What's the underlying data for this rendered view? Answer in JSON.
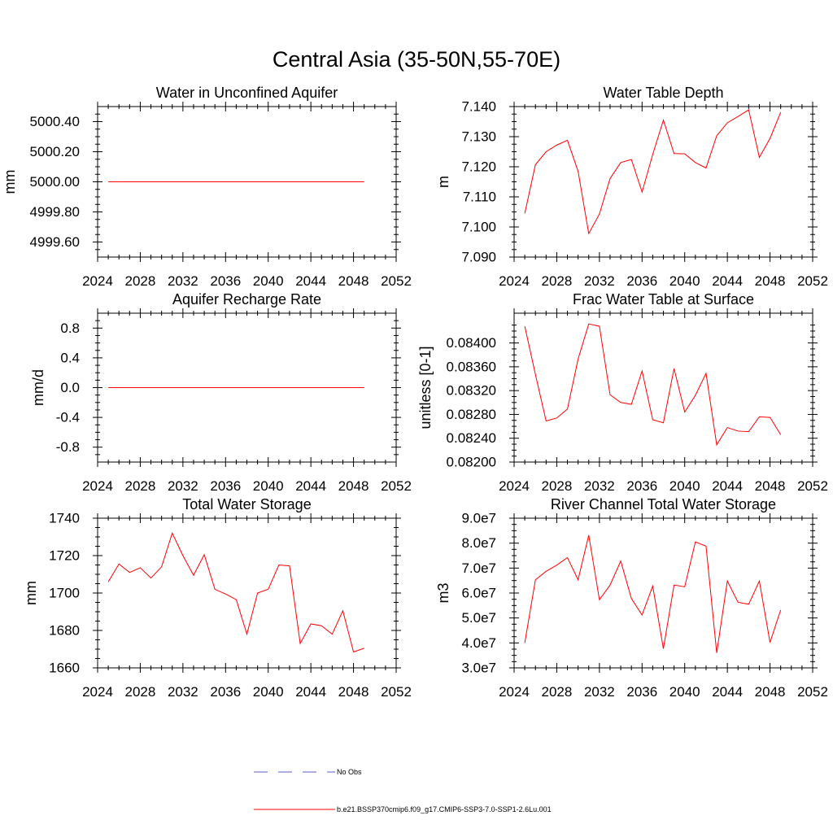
{
  "page_title": "Central Asia (35-50N,55-70E)",
  "legend": {
    "items": [
      {
        "label": "No Obs",
        "color": "#5b5bd6",
        "style": "dashed"
      },
      {
        "label": "b.e21.BSSP370cmip6.f09_g17.CMIP6-SSP3-7.0-SSP1-2.6Lu.001",
        "color": "#ff0000",
        "style": "solid"
      }
    ]
  },
  "chart_data": [
    {
      "type": "line",
      "title": "Water in Unconfined Aquifer",
      "xlabel": "",
      "ylabel": "mm",
      "xlim": [
        2024,
        2052
      ],
      "ylim": [
        4999.5,
        5000.5
      ],
      "xticks": [
        2024,
        2028,
        2032,
        2036,
        2040,
        2044,
        2048,
        2052
      ],
      "xtick_labels": [
        "2024",
        "2028",
        "2032",
        "2036",
        "2040",
        "2044",
        "2048",
        "2052"
      ],
      "yticks": [
        4999.6,
        4999.8,
        5000.0,
        5000.2,
        5000.4
      ],
      "ytick_labels": [
        "4999.60",
        "4999.80",
        "5000.00",
        "5000.20",
        "5000.40"
      ],
      "x": [
        2025,
        2026,
        2027,
        2028,
        2029,
        2030,
        2031,
        2032,
        2033,
        2034,
        2035,
        2036,
        2037,
        2038,
        2039,
        2040,
        2041,
        2042,
        2043,
        2044,
        2045,
        2046,
        2047,
        2048,
        2049
      ],
      "series": [
        {
          "values": [
            5000,
            5000,
            5000,
            5000,
            5000,
            5000,
            5000,
            5000,
            5000,
            5000,
            5000,
            5000,
            5000,
            5000,
            5000,
            5000,
            5000,
            5000,
            5000,
            5000,
            5000,
            5000,
            5000,
            5000,
            5000
          ],
          "color": "#ff0000"
        }
      ]
    },
    {
      "type": "line",
      "title": "Water Table Depth",
      "xlabel": "",
      "ylabel": "m",
      "xlim": [
        2024,
        2052
      ],
      "ylim": [
        7.09,
        7.14
      ],
      "xticks": [
        2024,
        2028,
        2032,
        2036,
        2040,
        2044,
        2048,
        2052
      ],
      "xtick_labels": [
        "2024",
        "2028",
        "2032",
        "2036",
        "2040",
        "2044",
        "2048",
        "2052"
      ],
      "yticks": [
        7.09,
        7.1,
        7.11,
        7.12,
        7.13,
        7.14
      ],
      "ytick_labels": [
        "7.090",
        "7.100",
        "7.110",
        "7.120",
        "7.130",
        "7.140"
      ],
      "x": [
        2025,
        2026,
        2027,
        2028,
        2029,
        2030,
        2031,
        2032,
        2033,
        2034,
        2035,
        2036,
        2037,
        2038,
        2039,
        2040,
        2041,
        2042,
        2043,
        2044,
        2045,
        2046,
        2047,
        2048,
        2049
      ],
      "series": [
        {
          "values": [
            7.1045,
            7.1207,
            7.125,
            7.1272,
            7.1288,
            7.1185,
            7.0978,
            7.1043,
            7.1161,
            7.1214,
            7.1224,
            7.1116,
            7.1241,
            7.1355,
            7.1244,
            7.1243,
            7.1214,
            7.1196,
            7.1303,
            7.1346,
            7.1367,
            7.1389,
            7.1231,
            7.1294,
            7.1381
          ],
          "color": "#ff0000"
        }
      ]
    },
    {
      "type": "line",
      "title": "Aquifer Recharge Rate",
      "xlabel": "",
      "ylabel": "mm/d",
      "xlim": [
        2024,
        2052
      ],
      "ylim": [
        -1.0,
        1.0
      ],
      "xticks": [
        2024,
        2028,
        2032,
        2036,
        2040,
        2044,
        2048,
        2052
      ],
      "xtick_labels": [
        "2024",
        "2028",
        "2032",
        "2036",
        "2040",
        "2044",
        "2048",
        "2052"
      ],
      "yticks": [
        -0.8,
        -0.4,
        0.0,
        0.4,
        0.8
      ],
      "ytick_labels": [
        "-0.8",
        "-0.4",
        "0.0",
        "0.4",
        "0.8"
      ],
      "x": [
        2025,
        2026,
        2027,
        2028,
        2029,
        2030,
        2031,
        2032,
        2033,
        2034,
        2035,
        2036,
        2037,
        2038,
        2039,
        2040,
        2041,
        2042,
        2043,
        2044,
        2045,
        2046,
        2047,
        2048,
        2049
      ],
      "series": [
        {
          "values": [
            0,
            0,
            0,
            0,
            0,
            0,
            0,
            0,
            0,
            0,
            0,
            0,
            0,
            0,
            0,
            0,
            0,
            0,
            0,
            0,
            0,
            0,
            0,
            0,
            0
          ],
          "color": "#ff0000"
        }
      ]
    },
    {
      "type": "line",
      "title": "Frac Water Table at Surface",
      "xlabel": "",
      "ylabel": "unitless [0-1]",
      "xlim": [
        2024,
        2052
      ],
      "ylim": [
        0.082,
        0.0845
      ],
      "xticks": [
        2024,
        2028,
        2032,
        2036,
        2040,
        2044,
        2048,
        2052
      ],
      "xtick_labels": [
        "2024",
        "2028",
        "2032",
        "2036",
        "2040",
        "2044",
        "2048",
        "2052"
      ],
      "yticks": [
        0.082,
        0.0824,
        0.0828,
        0.0832,
        0.0836,
        0.084
      ],
      "ytick_labels": [
        "0.08200",
        "0.08240",
        "0.08280",
        "0.08320",
        "0.08360",
        "0.08400"
      ],
      "x": [
        2025,
        2026,
        2027,
        2028,
        2029,
        2030,
        2031,
        2032,
        2033,
        2034,
        2035,
        2036,
        2037,
        2038,
        2039,
        2040,
        2041,
        2042,
        2043,
        2044,
        2045,
        2046,
        2047,
        2048,
        2049
      ],
      "series": [
        {
          "values": [
            0.08428,
            0.08347,
            0.08269,
            0.08274,
            0.08289,
            0.08373,
            0.08432,
            0.08428,
            0.08313,
            0.083,
            0.08297,
            0.08353,
            0.08271,
            0.08266,
            0.08357,
            0.08284,
            0.08312,
            0.08349,
            0.08229,
            0.08258,
            0.08252,
            0.08251,
            0.08276,
            0.08275,
            0.08246
          ],
          "color": "#ff0000"
        }
      ]
    },
    {
      "type": "line",
      "title": "Total Water Storage",
      "xlabel": "",
      "ylabel": "mm",
      "xlim": [
        2024,
        2052
      ],
      "ylim": [
        1660,
        1740
      ],
      "xticks": [
        2024,
        2028,
        2032,
        2036,
        2040,
        2044,
        2048,
        2052
      ],
      "xtick_labels": [
        "2024",
        "2028",
        "2032",
        "2036",
        "2040",
        "2044",
        "2048",
        "2052"
      ],
      "yticks": [
        1660,
        1680,
        1700,
        1720,
        1740
      ],
      "ytick_labels": [
        "1660",
        "1680",
        "1700",
        "1720",
        "1740"
      ],
      "x": [
        2025,
        2026,
        2027,
        2028,
        2029,
        2030,
        2031,
        2032,
        2033,
        2034,
        2035,
        2036,
        2037,
        2038,
        2039,
        2040,
        2041,
        2042,
        2043,
        2044,
        2045,
        2046,
        2047,
        2048,
        2049
      ],
      "series": [
        {
          "values": [
            1706,
            1715.5,
            1711,
            1713.5,
            1708,
            1714,
            1732,
            1720,
            1709.5,
            1720.5,
            1702,
            1699.5,
            1696.5,
            1678,
            1700,
            1702,
            1715,
            1714.5,
            1673,
            1683.5,
            1682.5,
            1678,
            1690.5,
            1668.5,
            1670.5
          ],
          "color": "#ff0000"
        }
      ]
    },
    {
      "type": "line",
      "title": "River Channel Total Water Storage",
      "xlabel": "",
      "ylabel": "m3",
      "xlim": [
        2024,
        2052
      ],
      "ylim": [
        30000000,
        90000000
      ],
      "xticks": [
        2024,
        2028,
        2032,
        2036,
        2040,
        2044,
        2048,
        2052
      ],
      "xtick_labels": [
        "2024",
        "2028",
        "2032",
        "2036",
        "2040",
        "2044",
        "2048",
        "2052"
      ],
      "yticks": [
        30000000,
        40000000,
        50000000,
        60000000,
        70000000,
        80000000,
        90000000
      ],
      "ytick_labels": [
        "3.0e7",
        "4.0e7",
        "5.0e7",
        "6.0e7",
        "7.0e7",
        "8.0e7",
        "9.0e7"
      ],
      "x": [
        2025,
        2026,
        2027,
        2028,
        2029,
        2030,
        2031,
        2032,
        2033,
        2034,
        2035,
        2036,
        2037,
        2038,
        2039,
        2040,
        2041,
        2042,
        2043,
        2044,
        2045,
        2046,
        2047,
        2048,
        2049
      ],
      "series": [
        {
          "values": [
            40000000,
            65300000,
            68700000,
            71200000,
            74200000,
            65300000,
            83200000,
            57300000,
            63200000,
            72800000,
            57800000,
            51200000,
            62800000,
            37700000,
            63200000,
            62500000,
            80500000,
            78800000,
            36000000,
            64800000,
            56300000,
            55500000,
            64800000,
            40200000,
            53200000
          ],
          "color": "#ff0000"
        }
      ]
    }
  ]
}
